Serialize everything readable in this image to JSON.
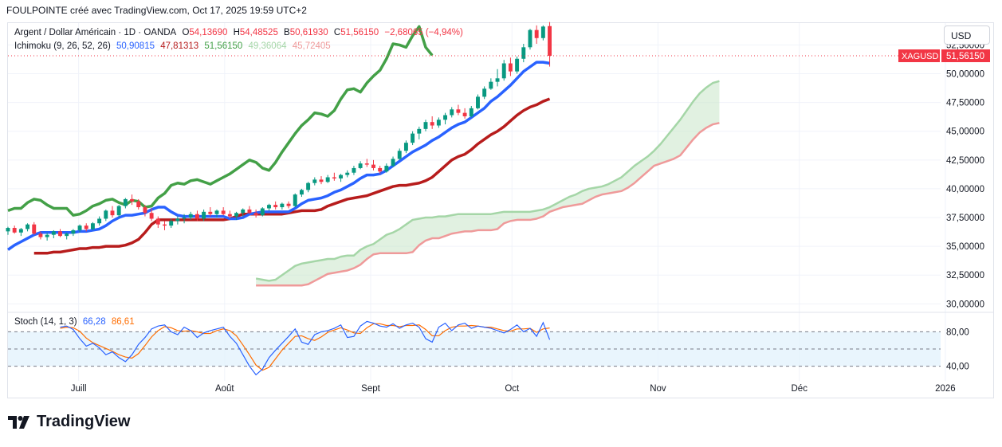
{
  "header": {
    "text": "FOULPOINTE créé avec TradingView.com, Oct 17, 2025 19:59 UTC+2"
  },
  "legend": {
    "symbol": "Argent / Dollar Américain · 1D · OANDA",
    "o_label": "O",
    "o": "54,13690",
    "h_label": "H",
    "h": "54,48525",
    "b_label": "B",
    "b": "50,61930",
    "c_label": "C",
    "c": "51,56150",
    "chg": "−2,68065 (−4,94%)",
    "ichimoku_label": "Ichimoku (9, 26, 52, 26)",
    "ichimoku_values": [
      "50,90815",
      "47,81313",
      "51,56150",
      "49,36064",
      "45,72405"
    ],
    "stoch_label": "Stoch (14, 1, 3)",
    "stoch_k": "66,28",
    "stoch_d": "86,61"
  },
  "currency_button": "USD",
  "price_tag": {
    "symbol": "XAGUSD",
    "value": "51,56150"
  },
  "price_axis_labels": [
    "52,50000",
    "50,00000",
    "47,50000",
    "45,00000",
    "42,50000",
    "40,00000",
    "37,50000",
    "35,00000",
    "32,50000",
    "30,00000"
  ],
  "stoch_axis_labels": [
    "80,00",
    "40,00"
  ],
  "time_axis_labels": [
    "Juill",
    "Août",
    "Sept",
    "Oct",
    "Nov",
    "Déc",
    "2026"
  ],
  "brand": "TradingView",
  "colors": {
    "up": "#089981",
    "down": "#f23645",
    "tenkan": "#2962ff",
    "kijun": "#b71c1c",
    "chikou": "#43a047",
    "spanA": "#a5d6a7",
    "spanB": "#ef9a9a",
    "stochK": "#2962ff",
    "stochD": "#ff6d00",
    "price_tag": "#f23645"
  },
  "chart_data": {
    "type": "candlestick",
    "symbol": "XAGUSD",
    "timeframe": "1D",
    "ylim": [
      29.4,
      54.4
    ],
    "date_range": [
      "2025-06-16",
      "2025-12-31"
    ],
    "candles": [
      [
        36.3,
        36.7,
        36.0,
        36.6
      ],
      [
        36.6,
        36.8,
        36.1,
        36.2
      ],
      [
        36.2,
        36.6,
        35.9,
        36.5
      ],
      [
        36.5,
        37.0,
        36.3,
        36.9
      ],
      [
        36.9,
        37.1,
        36.0,
        36.1
      ],
      [
        36.1,
        36.3,
        35.6,
        35.8
      ],
      [
        35.8,
        36.2,
        35.5,
        36.0
      ],
      [
        36.0,
        36.4,
        35.7,
        36.3
      ],
      [
        36.3,
        36.5,
        35.8,
        35.9
      ],
      [
        35.9,
        36.2,
        35.6,
        36.1
      ],
      [
        36.1,
        36.5,
        35.9,
        36.4
      ],
      [
        36.4,
        36.9,
        36.2,
        36.8
      ],
      [
        36.8,
        37.0,
        36.3,
        36.5
      ],
      [
        36.5,
        37.1,
        36.4,
        37.0
      ],
      [
        37.0,
        37.6,
        36.8,
        37.4
      ],
      [
        37.4,
        38.2,
        37.2,
        38.1
      ],
      [
        38.1,
        38.5,
        37.5,
        37.7
      ],
      [
        37.7,
        38.6,
        37.5,
        38.5
      ],
      [
        38.5,
        39.2,
        38.3,
        39.1
      ],
      [
        39.1,
        39.5,
        38.6,
        38.9
      ],
      [
        38.9,
        39.1,
        38.2,
        38.4
      ],
      [
        38.4,
        38.6,
        37.6,
        37.9
      ],
      [
        37.9,
        38.3,
        37.2,
        37.4
      ],
      [
        37.4,
        37.6,
        36.6,
        36.9
      ],
      [
        36.9,
        37.2,
        36.4,
        36.8
      ],
      [
        36.8,
        37.4,
        36.6,
        37.2
      ],
      [
        37.2,
        37.6,
        36.9,
        37.4
      ],
      [
        37.4,
        37.8,
        37.0,
        37.5
      ],
      [
        37.5,
        38.0,
        37.3,
        37.8
      ],
      [
        37.8,
        38.1,
        37.2,
        37.4
      ],
      [
        37.4,
        38.2,
        37.2,
        38.0
      ],
      [
        38.0,
        38.4,
        37.6,
        37.8
      ],
      [
        37.8,
        38.2,
        37.5,
        38.1
      ],
      [
        38.1,
        38.4,
        37.7,
        37.8
      ],
      [
        37.8,
        38.1,
        37.4,
        37.6
      ],
      [
        37.6,
        38.0,
        37.3,
        37.9
      ],
      [
        37.9,
        38.3,
        37.6,
        38.2
      ],
      [
        38.2,
        38.5,
        37.8,
        37.9
      ],
      [
        37.9,
        38.2,
        37.5,
        37.7
      ],
      [
        37.7,
        38.4,
        37.6,
        38.3
      ],
      [
        38.3,
        38.7,
        38.1,
        38.6
      ],
      [
        38.6,
        38.9,
        38.2,
        38.4
      ],
      [
        38.4,
        38.8,
        38.2,
        38.7
      ],
      [
        38.7,
        38.9,
        38.3,
        38.5
      ],
      [
        38.5,
        39.6,
        38.4,
        39.5
      ],
      [
        39.5,
        40.0,
        39.3,
        39.9
      ],
      [
        39.9,
        40.6,
        39.7,
        40.5
      ],
      [
        40.5,
        41.0,
        40.3,
        40.8
      ],
      [
        40.8,
        41.1,
        40.4,
        40.6
      ],
      [
        40.6,
        41.2,
        40.5,
        41.0
      ],
      [
        41.0,
        41.4,
        40.7,
        40.9
      ],
      [
        40.9,
        41.3,
        40.6,
        41.2
      ],
      [
        41.2,
        41.6,
        41.0,
        41.4
      ],
      [
        41.4,
        42.0,
        41.2,
        41.8
      ],
      [
        41.8,
        42.4,
        41.7,
        42.2
      ],
      [
        42.2,
        42.6,
        41.9,
        42.1
      ],
      [
        42.1,
        42.5,
        41.6,
        41.8
      ],
      [
        41.8,
        42.0,
        41.3,
        41.5
      ],
      [
        41.5,
        42.2,
        41.4,
        42.0
      ],
      [
        42.0,
        42.8,
        41.9,
        42.6
      ],
      [
        42.6,
        43.5,
        42.5,
        43.3
      ],
      [
        43.3,
        44.2,
        43.1,
        44.0
      ],
      [
        44.0,
        45.0,
        43.8,
        44.8
      ],
      [
        44.8,
        45.4,
        44.3,
        45.2
      ],
      [
        45.2,
        46.0,
        45.0,
        45.8
      ],
      [
        45.8,
        46.3,
        45.2,
        45.5
      ],
      [
        45.5,
        46.2,
        45.3,
        46.0
      ],
      [
        46.0,
        46.6,
        45.6,
        46.4
      ],
      [
        46.4,
        47.1,
        46.2,
        46.9
      ],
      [
        46.9,
        47.3,
        46.4,
        46.6
      ],
      [
        46.6,
        47.0,
        46.1,
        46.3
      ],
      [
        46.3,
        47.2,
        46.2,
        47.0
      ],
      [
        47.0,
        48.2,
        46.9,
        48.0
      ],
      [
        48.0,
        48.9,
        47.8,
        48.7
      ],
      [
        48.7,
        49.6,
        48.6,
        49.3
      ],
      [
        49.3,
        50.4,
        48.9,
        49.6
      ],
      [
        49.6,
        51.2,
        49.4,
        50.9
      ],
      [
        50.9,
        51.4,
        49.8,
        50.2
      ],
      [
        50.2,
        51.5,
        50.0,
        51.3
      ],
      [
        51.3,
        52.6,
        51.0,
        52.3
      ],
      [
        52.3,
        53.9,
        52.1,
        53.8
      ],
      [
        53.8,
        54.2,
        52.6,
        53.1
      ],
      [
        53.1,
        54.2,
        52.9,
        54.1
      ],
      [
        54.14,
        54.49,
        50.62,
        51.56
      ]
    ],
    "ichimoku": {
      "params": [
        9,
        26,
        52,
        26
      ],
      "tenkan": [
        34.7,
        35.1,
        35.4,
        35.7,
        36.0,
        36.2,
        36.2,
        36.2,
        36.2,
        36.2,
        36.2,
        36.3,
        36.3,
        36.4,
        36.5,
        36.8,
        37.2,
        37.5,
        37.7,
        37.7,
        37.8,
        37.9,
        38.2,
        38.4,
        38.4,
        38.0,
        37.7,
        37.6,
        37.6,
        37.6,
        37.6,
        37.6,
        37.6,
        37.6,
        37.4,
        37.4,
        37.5,
        37.8,
        37.9,
        38.0,
        38.0,
        38.0,
        38.0,
        38.0,
        38.3,
        38.7,
        39.0,
        39.1,
        39.2,
        39.4,
        39.7,
        39.9,
        40.2,
        40.5,
        40.9,
        41.2,
        41.2,
        41.3,
        41.6,
        42.0,
        42.4,
        42.8,
        43.2,
        43.5,
        43.8,
        44.2,
        44.5,
        44.9,
        45.3,
        45.6,
        45.8,
        46.2,
        46.6,
        47.0,
        47.6,
        48.0,
        48.5,
        49.0,
        49.6,
        50.2,
        50.6,
        51.0,
        51.0,
        50.91
      ],
      "kijun": [
        34.4,
        34.4,
        34.4,
        34.5,
        34.5,
        34.6,
        34.7,
        34.8,
        34.8,
        34.9,
        34.9,
        35.0,
        35.0,
        35.0,
        35.1,
        35.3,
        35.6,
        36.2,
        36.9,
        37.3,
        37.3,
        37.3,
        37.3,
        37.3,
        37.3,
        37.3,
        37.3,
        37.3,
        37.3,
        37.3,
        37.4,
        37.6,
        37.8,
        37.8,
        37.8,
        37.8,
        37.8,
        37.8,
        37.8,
        37.9,
        38.0,
        38.1,
        38.1,
        38.1,
        38.2,
        38.5,
        38.7,
        38.9,
        39.1,
        39.2,
        39.3,
        39.4,
        39.6,
        39.8,
        40.0,
        40.2,
        40.3,
        40.3,
        40.4,
        40.5,
        40.7,
        41.0,
        41.5,
        42.0,
        42.5,
        42.8,
        43.0,
        43.4,
        43.9,
        44.3,
        44.7,
        45.0,
        45.4,
        45.9,
        46.4,
        46.8,
        47.1,
        47.3,
        47.6,
        47.81
      ],
      "chikou": [
        38.1,
        38.3,
        38.3,
        38.8,
        39.1,
        39.0,
        38.6,
        38.3,
        38.3,
        38.3,
        37.7,
        37.8,
        38.1,
        38.5,
        38.7,
        39.0,
        39.1,
        38.8,
        38.6,
        39.0,
        38.9,
        38.4,
        38.5,
        39.2,
        39.6,
        40.3,
        40.5,
        40.4,
        40.7,
        40.8,
        40.6,
        40.4,
        40.7,
        41.0,
        41.3,
        41.7,
        42.1,
        42.5,
        42.3,
        41.8,
        41.6,
        42.3,
        43.2,
        44.0,
        44.8,
        45.5,
        46.0,
        46.6,
        46.5,
        46.3,
        46.8,
        47.8,
        48.6,
        48.7,
        48.4,
        49.2,
        49.8,
        50.3,
        51.3,
        52.6,
        52.5,
        52.3,
        53.3,
        54.1,
        52.3,
        51.6
      ],
      "span_a": [
        32.2,
        32.1,
        32.0,
        32.1,
        32.5,
        32.9,
        33.3,
        33.5,
        33.6,
        33.7,
        33.8,
        33.9,
        33.9,
        34.1,
        34.2,
        34.2,
        34.7,
        35.0,
        35.2,
        35.6,
        36.0,
        36.2,
        36.5,
        36.9,
        37.3,
        37.4,
        37.5,
        37.5,
        37.6,
        37.6,
        37.7,
        37.8,
        37.8,
        37.8,
        37.8,
        37.8,
        37.8,
        37.9,
        38.0,
        38.0,
        38.0,
        38.0,
        38.0,
        38.1,
        38.2,
        38.4,
        38.7,
        39.0,
        39.3,
        39.5,
        39.8,
        40.0,
        40.1,
        40.2,
        40.4,
        40.7,
        41.0,
        41.5,
        42.0,
        42.4,
        42.8,
        43.3,
        43.9,
        44.6,
        45.3,
        46.0,
        46.8,
        47.6,
        48.3,
        48.8,
        49.2,
        49.36
      ],
      "span_b": [
        31.6,
        31.6,
        31.6,
        31.6,
        31.6,
        31.6,
        31.6,
        31.6,
        31.7,
        32.0,
        32.3,
        32.6,
        32.7,
        32.8,
        32.9,
        33.1,
        33.4,
        33.9,
        34.3,
        34.4,
        34.4,
        34.4,
        34.4,
        34.4,
        34.5,
        35.1,
        35.5,
        35.7,
        35.7,
        35.9,
        36.1,
        36.2,
        36.3,
        36.3,
        36.4,
        36.4,
        36.4,
        36.5,
        37.0,
        37.2,
        37.3,
        37.3,
        37.3,
        37.4,
        37.6,
        38.0,
        38.2,
        38.4,
        38.5,
        38.6,
        38.7,
        39.0,
        39.3,
        39.5,
        39.6,
        39.7,
        39.8,
        40.1,
        40.5,
        41.0,
        41.5,
        42.0,
        42.2,
        42.4,
        42.6,
        42.9,
        43.6,
        44.3,
        44.9,
        45.3,
        45.6,
        45.72
      ]
    },
    "stochastic": {
      "params": [
        14,
        1,
        3
      ],
      "ylim": [
        0,
        100
      ],
      "levels": [
        80,
        50,
        20
      ],
      "k": [
        88,
        90,
        84,
        68,
        55,
        60,
        52,
        40,
        45,
        35,
        28,
        40,
        58,
        70,
        85,
        90,
        92,
        80,
        75,
        88,
        82,
        70,
        78,
        82,
        85,
        88,
        72,
        60,
        40,
        20,
        5,
        15,
        35,
        48,
        60,
        72,
        85,
        62,
        58,
        75,
        80,
        82,
        86,
        92,
        70,
        72,
        90,
        98,
        95,
        90,
        88,
        94,
        86,
        92,
        95,
        88,
        68,
        62,
        88,
        95,
        82,
        92,
        95,
        86,
        90,
        88,
        86,
        82,
        78,
        84,
        92,
        80,
        86,
        72,
        96,
        66.28
      ],
      "d": [
        86,
        88,
        87,
        81,
        69,
        61,
        56,
        51,
        46,
        40,
        36,
        34,
        42,
        56,
        71,
        82,
        89,
        87,
        82,
        81,
        82,
        80,
        77,
        77,
        82,
        85,
        82,
        73,
        57,
        40,
        22,
        13,
        18,
        33,
        48,
        60,
        72,
        73,
        68,
        65,
        71,
        79,
        83,
        87,
        83,
        78,
        77,
        87,
        94,
        94,
        91,
        91,
        89,
        91,
        91,
        92,
        84,
        73,
        73,
        82,
        88,
        90,
        90,
        91,
        90,
        88,
        88,
        85,
        82,
        81,
        85,
        85,
        86,
        79,
        85,
        86.61
      ]
    }
  }
}
